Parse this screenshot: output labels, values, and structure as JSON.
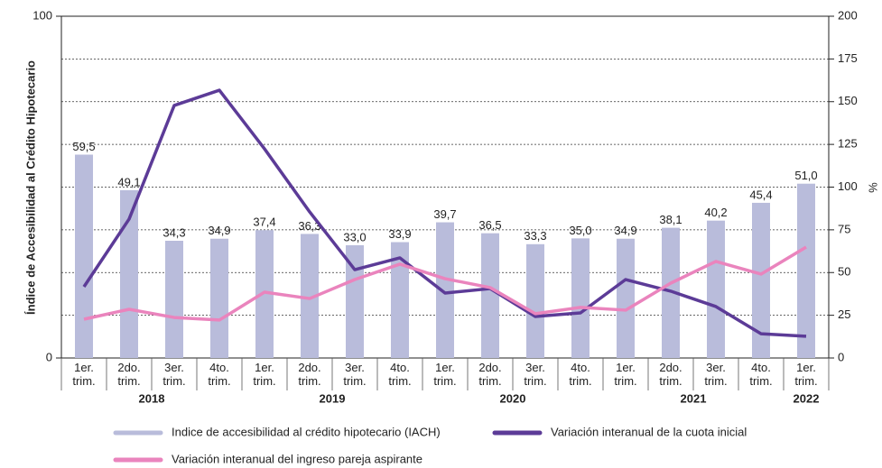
{
  "chart_data": {
    "type": "bar",
    "categories": [
      "1er. trim.",
      "2do. trim.",
      "3er. trim.",
      "4to. trim.",
      "1er. trim.",
      "2do. trim.",
      "3er. trim.",
      "4to. trim.",
      "1er. trim.",
      "2do. trim.",
      "3er. trim.",
      "4to. trim.",
      "1er. trim.",
      "2do. trim.",
      "3er. trim.",
      "4to. trim.",
      "1er. trim."
    ],
    "year_groups": [
      {
        "label": "2018",
        "span": [
          0,
          3
        ]
      },
      {
        "label": "2019",
        "span": [
          4,
          7
        ]
      },
      {
        "label": "2020",
        "span": [
          8,
          11
        ]
      },
      {
        "label": "2021",
        "span": [
          12,
          15
        ]
      },
      {
        "label": "2022",
        "span": [
          16,
          16
        ]
      }
    ],
    "ylabel": "Índice de Accesibilidad al Crédito Hipotecario",
    "y2label": "%",
    "ylim": [
      0,
      100
    ],
    "yticks": [
      0,
      100
    ],
    "y2lim": [
      0,
      200
    ],
    "y2ticks": [
      0,
      25,
      50,
      75,
      100,
      125,
      150,
      175,
      200
    ],
    "grid": true,
    "series": [
      {
        "name": "Indice de accesibilidad al crédito hipotecario (IACH)",
        "type": "bar",
        "axis": "y",
        "color": "#b9bcdb",
        "values": [
          59.5,
          49.1,
          34.3,
          34.9,
          37.4,
          36.3,
          33.0,
          33.9,
          39.7,
          36.5,
          33.3,
          35.0,
          34.9,
          38.1,
          40.2,
          45.4,
          51.0
        ],
        "value_labels": [
          "59,5",
          "49,1",
          "34,3",
          "34,9",
          "37,4",
          "36,3",
          "33,0",
          "33,9",
          "39,7",
          "36,5",
          "33,3",
          "35,0",
          "34,9",
          "38,1",
          "40,2",
          "45,4",
          "51,0"
        ]
      },
      {
        "name": "Variación interanual de la cuota inicial",
        "type": "line",
        "axis": "y2",
        "color": "#5c3b97",
        "values": [
          41.7,
          81.3,
          147.8,
          156.7,
          122.4,
          85.5,
          51.7,
          58.6,
          38.0,
          40.6,
          24.3,
          26.4,
          45.9,
          39.1,
          30.1,
          14.2,
          12.7
        ]
      },
      {
        "name": "Variación interanual del ingreso pareja aspirante",
        "type": "line",
        "axis": "y2",
        "color": "#ea84bd",
        "values": [
          22.7,
          28.5,
          23.7,
          22.2,
          38.5,
          34.8,
          45.9,
          54.9,
          46.4,
          41.2,
          25.9,
          29.6,
          28.0,
          43.8,
          56.5,
          49.1,
          64.9
        ]
      }
    ]
  }
}
